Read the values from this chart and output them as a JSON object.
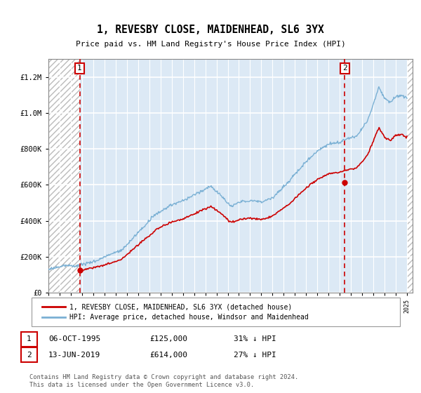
{
  "title": "1, REVESBY CLOSE, MAIDENHEAD, SL6 3YX",
  "subtitle": "Price paid vs. HM Land Registry's House Price Index (HPI)",
  "sale1_year": 1995.79,
  "sale1_price": 125000,
  "sale1_label": "06-OCT-1995",
  "sale1_hpi_note": "31% ↓ HPI",
  "sale2_year": 2019.45,
  "sale2_price": 614000,
  "sale2_label": "13-JUN-2019",
  "sale2_hpi_note": "27% ↓ HPI",
  "legend1": "1, REVESBY CLOSE, MAIDENHEAD, SL6 3YX (detached house)",
  "legend2": "HPI: Average price, detached house, Windsor and Maidenhead",
  "footer": "Contains HM Land Registry data © Crown copyright and database right 2024.\nThis data is licensed under the Open Government Licence v3.0.",
  "bg_color": "#dce9f5",
  "red_line_color": "#cc0000",
  "blue_line_color": "#7ab0d4",
  "ylim": [
    0,
    1300000
  ],
  "yticks": [
    0,
    200000,
    400000,
    600000,
    800000,
    1000000,
    1200000
  ],
  "xlim_start": 1993.0,
  "xlim_end": 2025.5
}
